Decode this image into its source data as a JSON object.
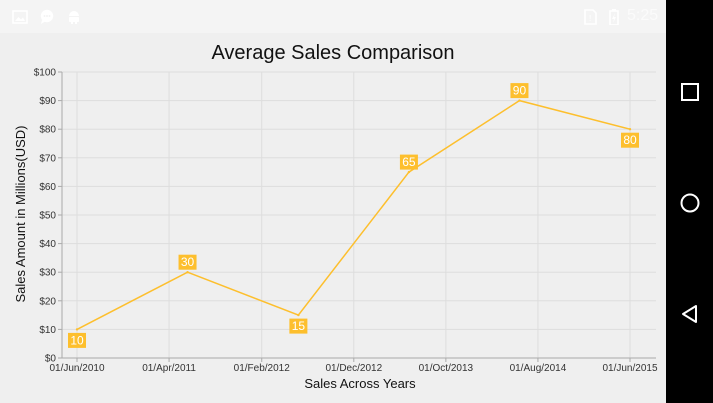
{
  "status_bar": {
    "time": "5:25",
    "left_icons": [
      "image-icon",
      "chat-icon",
      "android-icon"
    ],
    "right_icons": [
      "sim-no-service-icon",
      "battery-icon"
    ]
  },
  "nav_bar": {
    "buttons": [
      "recent-apps",
      "home",
      "back"
    ]
  },
  "colors": {
    "series": "#fdbf2d",
    "grid": "#dddddd",
    "axis": "#aaaaaa"
  },
  "chart_data": {
    "type": "line",
    "title": "Average Sales Comparison",
    "xlabel": "Sales Across Years",
    "ylabel": "Sales Amount in Millions(USD)",
    "x": [
      "01/Jun/2010",
      "01/Jun/2011",
      "01/Jun/2012",
      "01/Jun/2013",
      "01/Jun/2014",
      "01/Jun/2015"
    ],
    "values": [
      10,
      30,
      15,
      65,
      90,
      80
    ],
    "data_labels": [
      "10",
      "30",
      "15",
      "65",
      "90",
      "80"
    ],
    "x_tick_labels": [
      "01/Jun/2010",
      "01/Apr/2011",
      "01/Feb/2012",
      "01/Dec/2012",
      "01/Oct/2013",
      "01/Aug/2014",
      "01/Jun/2015"
    ],
    "y_tick_labels": [
      "$0",
      "$10",
      "$20",
      "$30",
      "$40",
      "$50",
      "$60",
      "$70",
      "$80",
      "$90",
      "$100"
    ],
    "ylim": [
      0,
      100
    ],
    "grid": true,
    "legend": "none"
  }
}
